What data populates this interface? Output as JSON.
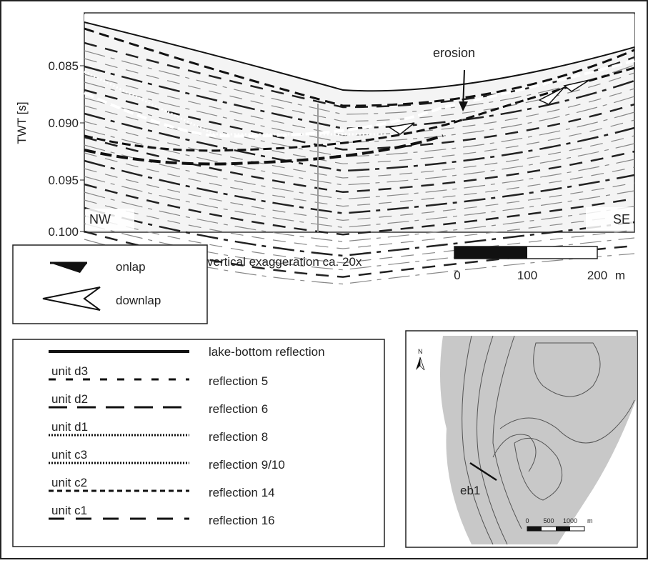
{
  "profile": {
    "axis_label": "TWT [s]",
    "ticks": [
      "0.085",
      "0.090",
      "0.095",
      "0.100"
    ],
    "left_label": "NW",
    "right_label": "SE",
    "annotation": "erosion"
  },
  "symbols": {
    "onlap": "onlap",
    "downlap": "downlap"
  },
  "exaggeration": "vertical exaggeration ca. 20x",
  "scale_bar": {
    "labels": [
      "0",
      "100",
      "200"
    ],
    "unit": "m"
  },
  "legend": {
    "rows": [
      {
        "unit": "",
        "reflection": "lake-bottom reflection"
      },
      {
        "unit": "unit d3",
        "reflection": "reflection 5"
      },
      {
        "unit": "unit d2",
        "reflection": "reflection 6"
      },
      {
        "unit": "unit d1",
        "reflection": "reflection 8"
      },
      {
        "unit": "unit c3",
        "reflection": "reflection 9/10"
      },
      {
        "unit": "unit c2",
        "reflection": "reflection 14"
      },
      {
        "unit": "unit c1",
        "reflection": "reflection 16"
      }
    ]
  },
  "map": {
    "north": "N",
    "profile_label": "eb1",
    "scale_labels": [
      "0",
      "500",
      "1000"
    ],
    "scale_unit": "m"
  }
}
